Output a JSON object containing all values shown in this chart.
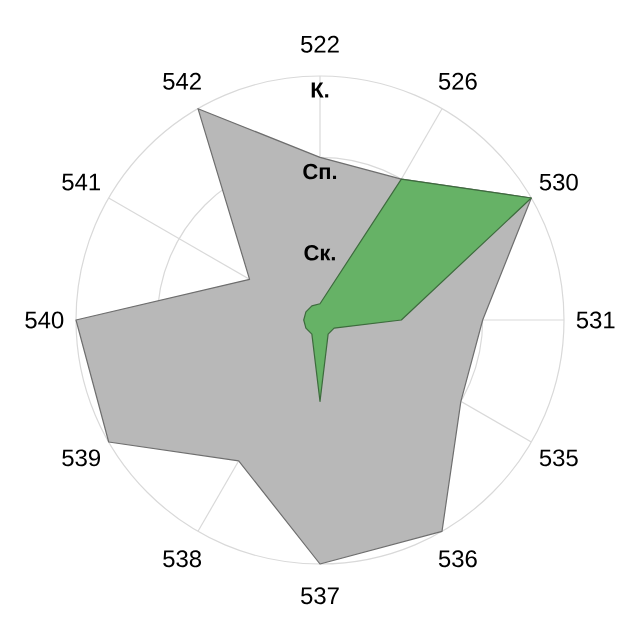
{
  "chart_data": {
    "type": "radar",
    "categories": [
      "522",
      "526",
      "530",
      "531",
      "535",
      "536",
      "537",
      "538",
      "539",
      "540",
      "541",
      "542"
    ],
    "series": [
      {
        "color": "#b8b8b8",
        "values": [
          2.0,
          2.0,
          3.0,
          2.0,
          2.0,
          3.0,
          3.0,
          2.0,
          3.0,
          3.0,
          1.0,
          3.0
        ]
      },
      {
        "color": "#66b266",
        "values": [
          0.2,
          2.0,
          3.0,
          1.0,
          0.2,
          0.2,
          1.0,
          0.2,
          0.2,
          0.2,
          0.2,
          0.2
        ]
      }
    ],
    "ylim": [
      0,
      3
    ],
    "yticks": [
      {
        "value": 1,
        "label": "Ск."
      },
      {
        "value": 2,
        "label": "Сп."
      },
      {
        "value": 3,
        "label": "К."
      }
    ],
    "grid": true
  }
}
